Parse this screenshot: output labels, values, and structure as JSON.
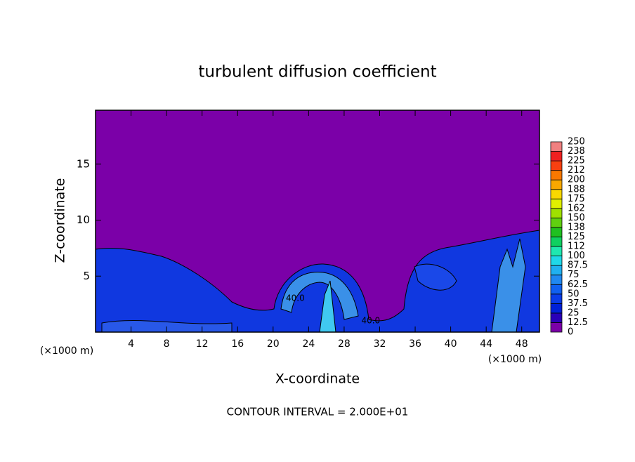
{
  "chart_data": {
    "type": "contour",
    "title": "turbulent diffusion coefficient",
    "xlabel": "X-coordinate",
    "ylabel": "Z-coordinate",
    "x_unit": "(×1000 m)",
    "footer": "CONTOUR INTERVAL = 2.000E+01",
    "xlim": [
      0,
      50
    ],
    "xticks": [
      4,
      8,
      12,
      16,
      20,
      24,
      28,
      32,
      36,
      40,
      44,
      48
    ],
    "ylim": [
      0,
      20
    ],
    "yticks": [
      5,
      10,
      15
    ],
    "contour_labels": [
      {
        "x": 22.5,
        "y": 3,
        "label": "40.0"
      },
      {
        "x": 31,
        "y": 1,
        "label": "40.0"
      }
    ],
    "colorbar": {
      "levels": [
        0,
        12.5,
        25,
        37.5,
        50,
        62.5,
        75,
        87.5,
        100,
        112,
        125,
        138,
        150,
        162,
        175,
        188,
        200,
        212,
        225,
        238,
        250
      ],
      "colors": [
        "#7b00a8",
        "#2a00b8",
        "#0020d8",
        "#0a3ce8",
        "#1060f0",
        "#2088f0",
        "#20b0f0",
        "#20d8e8",
        "#20e8b0",
        "#10d060",
        "#20c020",
        "#60d010",
        "#a0e000",
        "#e0f000",
        "#f8d800",
        "#f8a800",
        "#f87800",
        "#f84010",
        "#f02020",
        "#f08080"
      ]
    }
  }
}
